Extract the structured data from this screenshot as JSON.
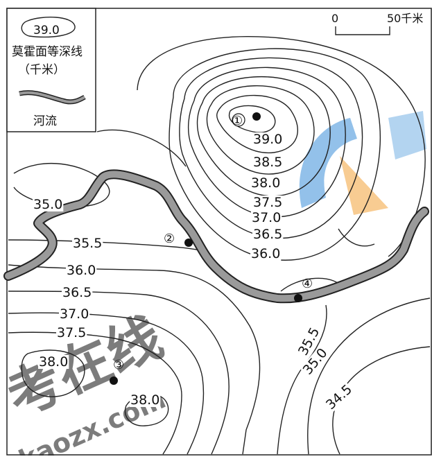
{
  "legend": {
    "sample_value": "39.0",
    "contour_title": "莫霍面等深线",
    "contour_unit": "（千米）",
    "river_label": "河流"
  },
  "scale": {
    "start": "0",
    "end": "50千米"
  },
  "contour_labels": [
    "39.0",
    "38.5",
    "38.0",
    "37.5",
    "37.0",
    "36.5",
    "36.0",
    "35.0",
    "35.5",
    "36.0",
    "36.5",
    "37.0",
    "37.5",
    "38.0",
    "38.0",
    "35.5",
    "35.0",
    "34.5"
  ],
  "points": [
    {
      "label": "①"
    },
    {
      "label": "②"
    },
    {
      "label": "③"
    },
    {
      "label": "④"
    }
  ],
  "watermark": {
    "text": "考在线",
    "url": "kaozx.com"
  },
  "colors": {
    "line": "#222222",
    "river_fill": "#9a9a9a",
    "watermark_blue": "#3b8fd9",
    "watermark_orange": "#f2a23a"
  }
}
